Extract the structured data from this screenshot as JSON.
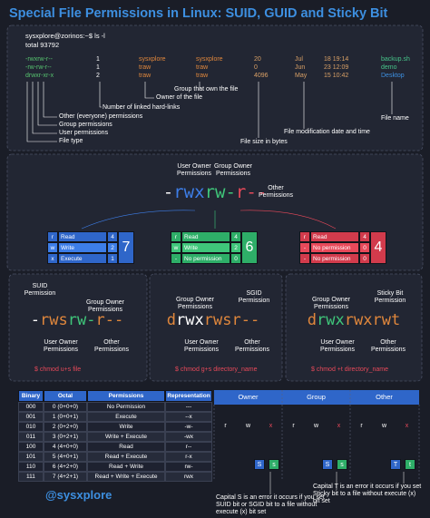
{
  "title": "Special File Permissions in Linux: SUID, GUID and Sticky Bit",
  "terminal": {
    "prompt": "sysxplore@zorinos:~$ ls -l",
    "total": "total 93792",
    "rows": [
      [
        "-rwxrw-r--",
        "1",
        "sysxplore",
        "sysxplore",
        "20",
        "Jul",
        "18 19:14",
        "backup.sh"
      ],
      [
        "-rw-rw-r--",
        "1",
        "traw",
        "traw",
        "0",
        "Jun",
        "23 12:09",
        "demo"
      ],
      [
        "drwxr-xr-x",
        "2",
        "traw",
        "traw",
        "4096",
        "May",
        "15 10:42",
        "Desktop"
      ]
    ],
    "annotations": [
      "Number of linked hard-links",
      "Group that own the file",
      "Owner of the file",
      "Other (everyone) permissions",
      "Group permissions",
      "User permissions",
      "File type",
      "File size in bytes",
      "File modification date and time",
      "File name"
    ]
  },
  "breakdown": {
    "user_label": "User Owner Permissions",
    "group_label": "Group Owner Permissions",
    "other_label": "Other Permissions",
    "parts": [
      "-",
      "rwx",
      "rw-",
      "r--"
    ],
    "tables": [
      {
        "rows": [
          [
            "r",
            "Read",
            "4"
          ],
          [
            "w",
            "Write",
            "2"
          ],
          [
            "x",
            "Execute",
            "1"
          ]
        ],
        "total": "7"
      },
      {
        "rows": [
          [
            "r",
            "Read",
            "4"
          ],
          [
            "w",
            "Write",
            "2"
          ],
          [
            "-",
            "No permission",
            "0"
          ]
        ],
        "total": "6"
      },
      {
        "rows": [
          [
            "r",
            "Read",
            "4"
          ],
          [
            "-",
            "No permission",
            "0"
          ],
          [
            "-",
            "No permission",
            "0"
          ]
        ],
        "total": "4"
      }
    ]
  },
  "special": [
    {
      "special_label": "SUID Permission",
      "group_label": "Group Owner Permissions",
      "user_label": "User Owner Permissions",
      "other_label": "Other Permissions",
      "parts": [
        "-",
        "rws",
        "rw-",
        "r--"
      ],
      "command": "$ chmod u+s file"
    },
    {
      "special_label": "SGID Permission",
      "group_label": "Group Owner Permissions",
      "user_label": "User Owner Permissions",
      "other_label": "Other Permissions",
      "parts": [
        "d",
        "rwx",
        "rws",
        "r--"
      ],
      "command": "$ chmod g+s directory_name"
    },
    {
      "special_label": "Sticky Bit Permission",
      "group_label": "Group Owner Permissions",
      "user_label": "User Owner Permissions",
      "other_label": "Other Permissions",
      "parts": [
        "d",
        "rwx",
        "rwx",
        "rwt"
      ],
      "command": "$ chmod +t directory_name"
    }
  ],
  "octal_table": {
    "header": [
      "Binary",
      "Octal",
      "Permissions",
      "Representation"
    ],
    "rows": [
      [
        "000",
        "0 (0+0+0)",
        "No Permission",
        "---"
      ],
      [
        "001",
        "1 (0+0+1)",
        "Execute",
        "--x"
      ],
      [
        "010",
        "2 (0+2+0)",
        "Write",
        "-w-"
      ],
      [
        "011",
        "3 (0+2+1)",
        "Write + Execute",
        "-wx"
      ],
      [
        "100",
        "4 (4+0+0)",
        "Read",
        "r--"
      ],
      [
        "101",
        "5 (4+0+1)",
        "Read + Execute",
        "r-x"
      ],
      [
        "110",
        "6 (4+2+0)",
        "Read + Write",
        "rw-"
      ],
      [
        "111",
        "7 (4+2+1)",
        "Read + Write + Execute",
        "rwx"
      ]
    ]
  },
  "bits": {
    "groups": [
      "Owner",
      "Group",
      "Other"
    ],
    "letters": [
      "r",
      "w",
      "x",
      "r",
      "w",
      "x",
      "r",
      "w",
      "x"
    ],
    "specials": [
      [
        "S",
        "s"
      ],
      [
        "S",
        "s"
      ],
      [
        "T",
        "t"
      ]
    ],
    "notes": [
      "Capital S is an error it occurs if you set SUID bit or SGID bit to a file without execute (x) bit set",
      "Capital T is an error it occurs if you set Sticky bit to a file without execute (x) bit set"
    ]
  },
  "handle": "@sysxplore"
}
